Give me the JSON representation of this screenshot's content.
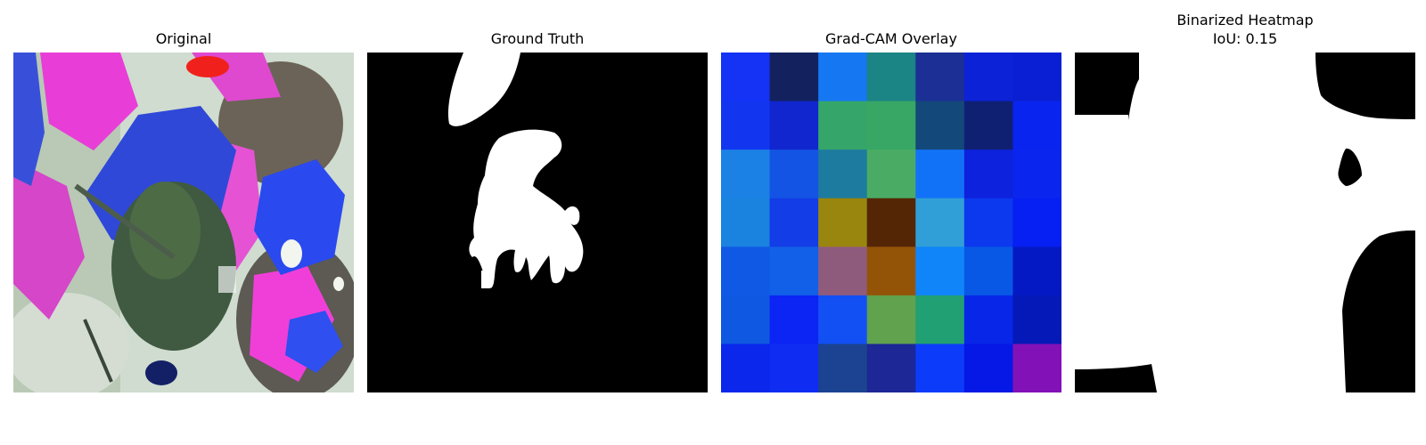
{
  "panels": [
    {
      "title": "Original"
    },
    {
      "title": "Ground Truth"
    },
    {
      "title": "Grad-CAM Overlay"
    },
    {
      "title": "Binarized Heatmap",
      "subtitle": "IoU: 0.15"
    }
  ],
  "heatmap": {
    "rows": 7,
    "cols": 7,
    "cells": [
      [
        "#1433f5",
        "#13225e",
        "#1677f3",
        "#1b8485",
        "#1c2f95",
        "#0c22d6",
        "#0a1fd3"
      ],
      [
        "#1236f0",
        "#1126cf",
        "#35a56a",
        "#38a766",
        "#13487a",
        "#0f2073",
        "#0a24ef"
      ],
      [
        "#1b81e5",
        "#1354e4",
        "#1d7ba0",
        "#4aab65",
        "#1272f7",
        "#0c22dc",
        "#0a25ee"
      ],
      [
        "#1a82df",
        "#133de7",
        "#99860f",
        "#552605",
        "#309fd7",
        "#0c38ee",
        "#061ff2"
      ],
      [
        "#1059e5",
        "#1260e7",
        "#8f5b7d",
        "#945408",
        "#1084f9",
        "#0858e5",
        "#0419c4"
      ],
      [
        "#0f58e1",
        "#0c24f4",
        "#1250f4",
        "#60a24d",
        "#21a073",
        "#0726e8",
        "#0419b7"
      ],
      [
        "#0b27ec",
        "#0f2cf2",
        "#1b4391",
        "#1d2795",
        "#0c3cfa",
        "#0518e6",
        "#8311b8"
      ]
    ]
  }
}
